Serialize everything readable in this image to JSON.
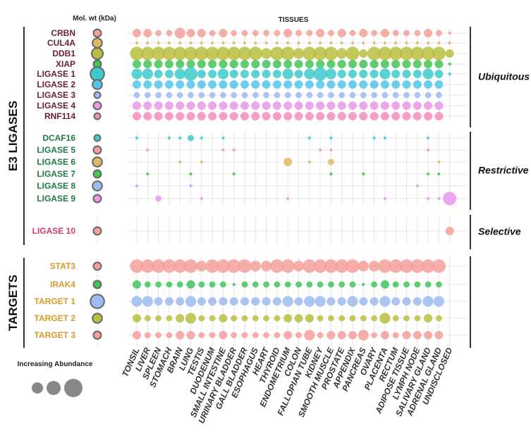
{
  "chart_data": {
    "type": "scatter",
    "subtype": "bubble-matrix",
    "columns_title": "TISSUES",
    "molwt_title": "Mol. wt (kDa)",
    "legend": {
      "title": "Increasing Abundance",
      "placement": "bottom-left"
    },
    "tissues": [
      "TONSIL",
      "LIVER",
      "SPLEEN",
      "STOMACH",
      "BRAIN",
      "LUNG",
      "TESTIS",
      "DUODENUM",
      "SMALL INTESTINE",
      "URINARY BLADDER",
      "GALL BLADDER",
      "ESOPHAGUS",
      "HEART",
      "THYROID",
      "ENDOMETRIUM",
      "COLON",
      "FALLOPIAN TUBE",
      "KIDNEY",
      "SMOOTH MUSCLE",
      "PROSTATE",
      "APPENDIX",
      "PANCREAS",
      "OVARY",
      "PLACENTA",
      "RECTUM",
      "ADIPOSE TISSUE",
      "LYMPH NODE",
      "SALIVARY GLAND",
      "ADRENAL GLAND",
      "UNDISCLOSED"
    ],
    "groups": [
      {
        "label": "E3 LIGASES",
        "subgroups": [
          "Ubiquitous",
          "Restrictive",
          "Selective"
        ]
      },
      {
        "label": "TARGETS",
        "subgroups": [
          "targets"
        ]
      }
    ],
    "subgroups": [
      {
        "key": "Ubiquitous",
        "label": "Ubiquitous"
      },
      {
        "key": "Restrictive",
        "label": "Restrictive"
      },
      {
        "key": "Selective",
        "label": "Selective"
      },
      {
        "key": "targets",
        "label": ""
      }
    ],
    "rows": [
      {
        "name": "CRBN",
        "subgroup": "Ubiquitous",
        "label_color": "#6b1d3a",
        "color": "#f4a09a",
        "molwt": 3,
        "values": [
          3,
          3,
          2,
          2,
          4,
          3,
          3,
          2,
          3,
          2,
          2,
          2,
          2,
          2,
          3,
          2,
          2,
          3,
          2,
          3,
          2,
          3,
          2,
          3,
          2,
          2,
          2,
          3,
          2,
          1
        ]
      },
      {
        "name": "CUL4A",
        "subgroup": "Ubiquitous",
        "label_color": "#6b1d3a",
        "color": "#e0b966",
        "molwt": 4,
        "values": [
          1,
          1,
          1,
          1,
          1,
          1,
          1,
          1,
          1,
          1,
          1,
          1,
          1,
          1,
          1,
          1,
          1,
          1,
          1,
          1,
          1,
          1,
          1,
          1,
          1,
          1,
          1,
          1,
          1,
          1
        ]
      },
      {
        "name": "DDB1",
        "subgroup": "Ubiquitous",
        "label_color": "#6b1d3a",
        "color": "#b9bf3f",
        "molwt": 5,
        "values": [
          5,
          5,
          5,
          5,
          5,
          5,
          5,
          5,
          5,
          5,
          5,
          5,
          4,
          5,
          5,
          4,
          5,
          5,
          5,
          4,
          5,
          3,
          5,
          5,
          5,
          5,
          5,
          5,
          5,
          3
        ]
      },
      {
        "name": "XIAP",
        "subgroup": "Ubiquitous",
        "label_color": "#6b1d3a",
        "color": "#45c45a",
        "molwt": 3,
        "values": [
          3,
          3,
          3,
          3,
          3,
          3,
          3,
          3,
          3,
          3,
          3,
          3,
          3,
          3,
          3,
          3,
          3,
          3,
          3,
          3,
          3,
          3,
          3,
          3,
          3,
          3,
          3,
          3,
          3,
          1
        ]
      },
      {
        "name": "LIGASE 1",
        "subgroup": "Ubiquitous",
        "label_color": "#6b1d3a",
        "color": "#3ecbcb",
        "molwt": 6,
        "values": [
          4,
          4,
          3,
          3,
          4,
          5,
          3,
          3,
          4,
          3,
          3,
          3,
          3,
          3,
          4,
          3,
          4,
          5,
          4,
          3,
          3,
          3,
          3,
          4,
          3,
          3,
          3,
          4,
          3,
          1
        ]
      },
      {
        "name": "LIGASE 2",
        "subgroup": "Ubiquitous",
        "label_color": "#6b1d3a",
        "color": "#54c5ea",
        "molwt": 4,
        "values": [
          3,
          3,
          3,
          3,
          3,
          3,
          3,
          3,
          3,
          3,
          3,
          3,
          3,
          3,
          3,
          3,
          3,
          3,
          3,
          3,
          3,
          3,
          3,
          3,
          3,
          3,
          3,
          3,
          3,
          0
        ]
      },
      {
        "name": "LIGASE 3",
        "subgroup": "Ubiquitous",
        "label_color": "#6b1d3a",
        "color": "#9dbcf2",
        "molwt": 2,
        "values": [
          2,
          2,
          2,
          2,
          2,
          2,
          2,
          2,
          2,
          2,
          2,
          2,
          2,
          2,
          2,
          2,
          2,
          2,
          2,
          2,
          2,
          2,
          2,
          2,
          2,
          2,
          2,
          2,
          2,
          0
        ]
      },
      {
        "name": "LIGASE 4",
        "subgroup": "Ubiquitous",
        "label_color": "#6b1d3a",
        "color": "#e79ae8",
        "molwt": 3,
        "values": [
          3,
          3,
          3,
          3,
          3,
          3,
          3,
          3,
          3,
          3,
          3,
          3,
          3,
          3,
          3,
          3,
          3,
          3,
          3,
          3,
          3,
          3,
          3,
          3,
          3,
          3,
          3,
          3,
          3,
          0
        ]
      },
      {
        "name": "RNF114",
        "subgroup": "Ubiquitous",
        "label_color": "#6b1d3a",
        "color": "#f48fbe",
        "molwt": 2,
        "values": [
          3,
          3,
          3,
          3,
          3,
          3,
          3,
          3,
          3,
          3,
          3,
          3,
          3,
          3,
          3,
          3,
          3,
          3,
          3,
          3,
          3,
          3,
          3,
          3,
          3,
          3,
          3,
          3,
          3,
          0
        ]
      },
      {
        "name": "DCAF16",
        "subgroup": "Restrictive",
        "label_color": "#207a43",
        "color": "#3ecbcb",
        "molwt": 2,
        "values": [
          1,
          0,
          0,
          1,
          1,
          2,
          1,
          0,
          1,
          0,
          0,
          0,
          0,
          0,
          0,
          0,
          1,
          0,
          1,
          0,
          0,
          0,
          1,
          1,
          0,
          0,
          0,
          1,
          0,
          0
        ]
      },
      {
        "name": "LIGASE 5",
        "subgroup": "Restrictive",
        "label_color": "#207a43",
        "color": "#f4a09a",
        "molwt": 3,
        "values": [
          0,
          1,
          0,
          0,
          0,
          0,
          0,
          0,
          1,
          1,
          0,
          0,
          0,
          0,
          0,
          0,
          0,
          1,
          1,
          0,
          0,
          0,
          0,
          0,
          0,
          0,
          0,
          1,
          0,
          0
        ]
      },
      {
        "name": "LIGASE 6",
        "subgroup": "Restrictive",
        "label_color": "#207a43",
        "color": "#e0b966",
        "molwt": 4,
        "values": [
          0,
          0,
          0,
          0,
          1,
          0,
          1,
          0,
          0,
          0,
          0,
          0,
          0,
          0,
          3,
          0,
          1,
          0,
          2,
          0,
          0,
          0,
          0,
          0,
          0,
          0,
          0,
          0,
          1,
          0
        ]
      },
      {
        "name": "LIGASE 7",
        "subgroup": "Restrictive",
        "label_color": "#207a43",
        "color": "#45c45a",
        "molwt": 3,
        "values": [
          0,
          1,
          0,
          0,
          0,
          1,
          0,
          0,
          0,
          1,
          0,
          0,
          0,
          0,
          0,
          0,
          0,
          0,
          1,
          0,
          0,
          1,
          0,
          0,
          0,
          0,
          0,
          1,
          1,
          0
        ]
      },
      {
        "name": "LIGASE 8",
        "subgroup": "Restrictive",
        "label_color": "#207a43",
        "color": "#9dbcf2",
        "molwt": 4,
        "values": [
          1,
          0,
          0,
          0,
          0,
          1,
          0,
          0,
          0,
          0,
          0,
          0,
          0,
          0,
          0,
          0,
          0,
          0,
          0,
          0,
          0,
          0,
          0,
          0,
          0,
          0,
          1,
          0,
          0,
          0
        ]
      },
      {
        "name": "LIGASE 9",
        "subgroup": "Restrictive",
        "label_color": "#207a43",
        "color": "#e79ae8",
        "molwt": 3,
        "values": [
          0,
          0,
          2,
          0,
          0,
          0,
          1,
          0,
          0,
          0,
          0,
          0,
          0,
          0,
          1,
          0,
          0,
          0,
          0,
          0,
          0,
          0,
          0,
          1,
          0,
          0,
          0,
          1,
          1,
          5
        ]
      },
      {
        "name": "LIGASE 10",
        "subgroup": "Selective",
        "label_color": "#d23d6e",
        "color": "#f4a09a",
        "molwt": 3,
        "values": [
          0,
          0,
          0,
          0,
          0,
          0,
          0,
          0,
          0,
          0,
          0,
          0,
          0,
          0,
          0,
          0,
          0,
          0,
          0,
          0,
          0,
          0,
          0,
          0,
          0,
          0,
          0,
          0,
          0,
          3
        ]
      },
      {
        "name": "STAT3",
        "subgroup": "targets",
        "label_color": "#d99a2b",
        "color": "#f4a09a",
        "molwt": 3,
        "values": [
          5,
          5,
          5,
          5,
          5,
          5,
          4,
          5,
          5,
          5,
          5,
          4,
          4,
          5,
          5,
          4,
          5,
          5,
          5,
          5,
          5,
          4,
          4,
          5,
          5,
          5,
          5,
          5,
          5,
          0
        ]
      },
      {
        "name": "IRAK4",
        "subgroup": "targets",
        "label_color": "#d99a2b",
        "color": "#45c45a",
        "molwt": 3,
        "values": [
          3,
          2,
          2,
          2,
          2,
          3,
          2,
          2,
          2,
          1,
          2,
          2,
          2,
          2,
          2,
          2,
          2,
          2,
          2,
          2,
          2,
          1,
          2,
          3,
          2,
          2,
          2,
          2,
          2,
          0
        ]
      },
      {
        "name": "TARGET 1",
        "subgroup": "targets",
        "label_color": "#d99a2b",
        "color": "#9dbcf2",
        "molwt": 6,
        "values": [
          4,
          4,
          3,
          3,
          3,
          4,
          3,
          3,
          3,
          3,
          3,
          3,
          3,
          3,
          4,
          3,
          4,
          4,
          3,
          3,
          4,
          3,
          3,
          4,
          3,
          3,
          3,
          4,
          4,
          0
        ]
      },
      {
        "name": "TARGET 2",
        "subgroup": "targets",
        "label_color": "#d99a2b",
        "color": "#b9bf3f",
        "molwt": 4,
        "values": [
          3,
          2,
          2,
          2,
          3,
          4,
          2,
          2,
          3,
          2,
          2,
          2,
          2,
          2,
          3,
          3,
          3,
          2,
          2,
          2,
          2,
          2,
          2,
          4,
          2,
          2,
          2,
          3,
          2,
          0
        ]
      },
      {
        "name": "TARGET 3",
        "subgroup": "targets",
        "label_color": "#d99a2b",
        "color": "#f4a09a",
        "molwt": 3,
        "values": [
          3,
          2,
          2,
          2,
          3,
          3,
          2,
          2,
          3,
          2,
          2,
          2,
          2,
          2,
          3,
          2,
          4,
          2,
          3,
          3,
          3,
          4,
          2,
          3,
          2,
          3,
          3,
          3,
          3,
          0
        ]
      }
    ],
    "colors": {
      "grid": "#e6e6e6",
      "outline": "#666666",
      "molwt_fill": "#8c8c8c"
    }
  }
}
